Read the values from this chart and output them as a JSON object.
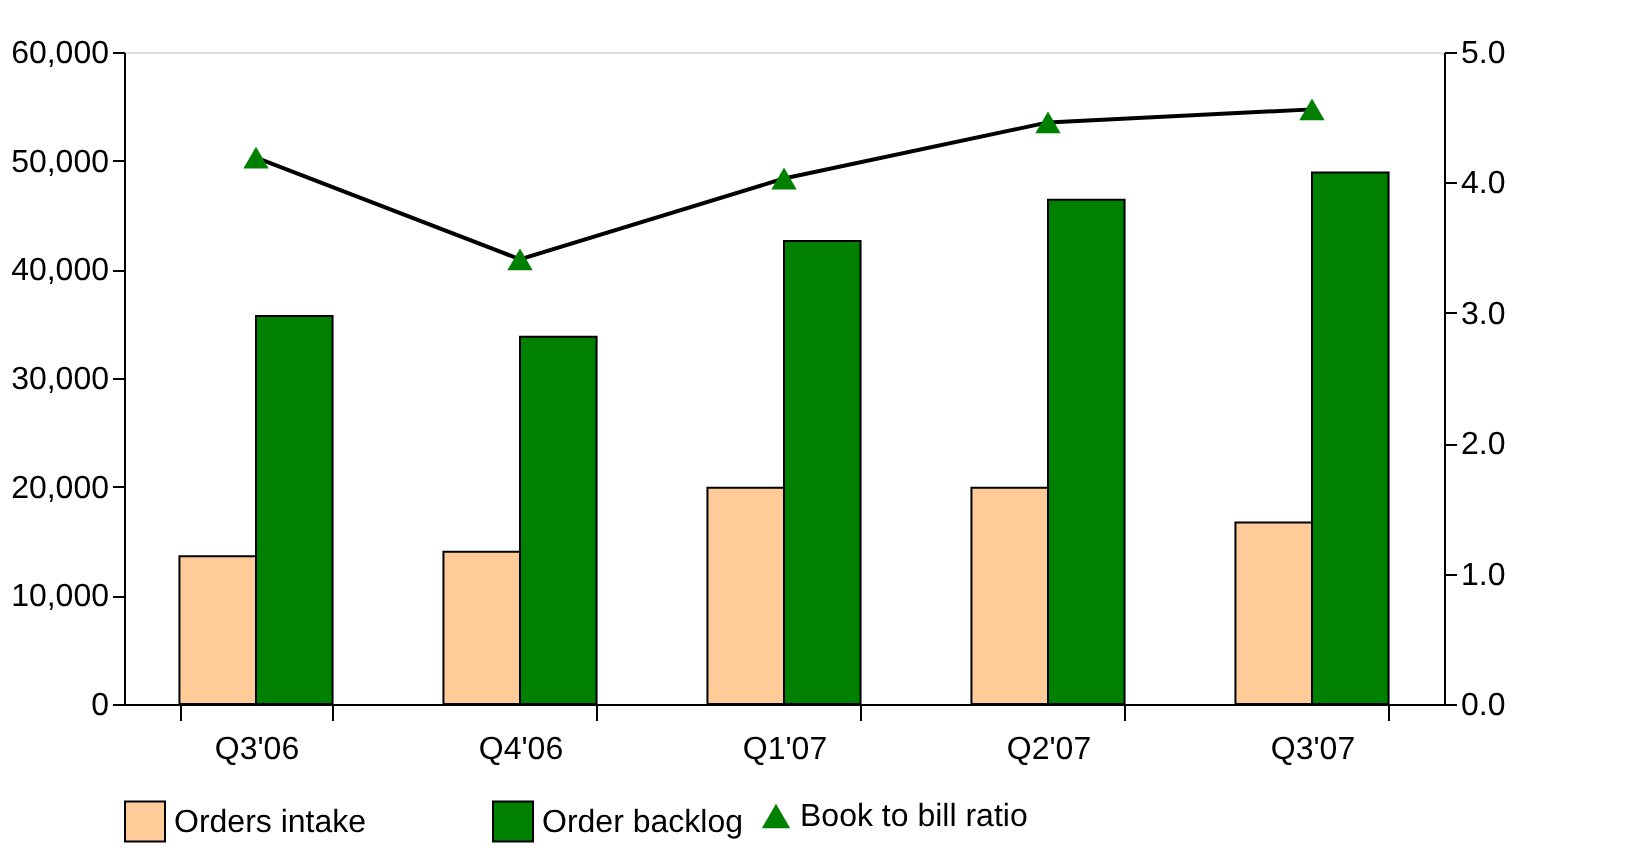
{
  "chart_data": {
    "type": "bar",
    "categories": [
      "Q3'06",
      "Q4'06",
      "Q1'07",
      "Q2'07",
      "Q3'07"
    ],
    "series": [
      {
        "name": "Orders intake",
        "color": "#ffcc99",
        "values": [
          13600,
          14000,
          19900,
          19900,
          16700
        ]
      },
      {
        "name": "Order backlog",
        "color": "#008000",
        "values": [
          35700,
          33800,
          42600,
          46400,
          48900
        ]
      },
      {
        "name": "Book to bill ratio",
        "type": "line",
        "axis": "y2",
        "color": "#008000",
        "marker": "triangle",
        "values": [
          4.19,
          3.41,
          4.03,
          4.46,
          4.56
        ]
      }
    ],
    "ylim": [
      0,
      60000
    ],
    "yticks": [
      0,
      {
        "value": 10000,
        "label": "10,000"
      },
      {
        "value": 20000,
        "label": "20,000"
      },
      {
        "value": 30000,
        "label": "30,000"
      },
      {
        "value": 40000,
        "label": "40,000"
      },
      {
        "value": 50000,
        "label": "50,000"
      },
      {
        "value": 60000,
        "label": "60,000"
      }
    ],
    "y2lim": [
      0,
      5.0
    ],
    "y2ticks": [
      {
        "value": 0,
        "label": "0.0"
      },
      {
        "value": 1,
        "label": "1.0"
      },
      {
        "value": 2,
        "label": "2.0"
      },
      {
        "value": 3,
        "label": "3.0"
      },
      {
        "value": 4,
        "label": "4.0"
      },
      {
        "value": 5,
        "label": "5.0"
      }
    ],
    "grid": false,
    "legend": "bottom"
  }
}
